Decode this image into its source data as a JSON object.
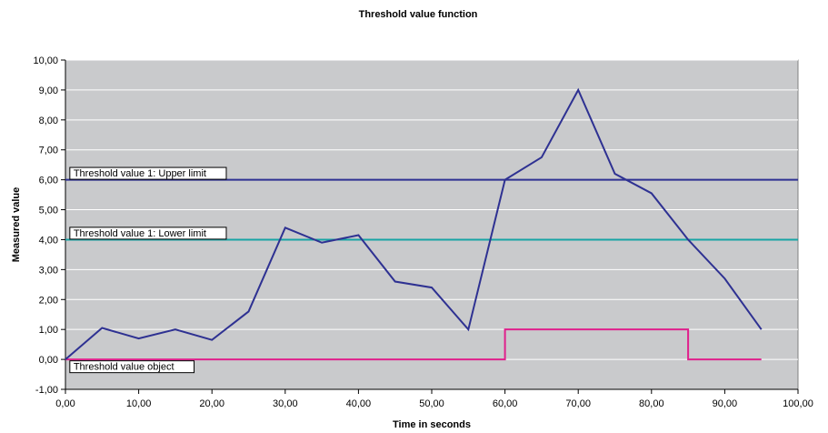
{
  "chart_data": {
    "type": "line",
    "title": "Threshold value function",
    "xlabel": "Time in seconds",
    "ylabel": "Measured value",
    "xlim": [
      0,
      100
    ],
    "ylim": [
      -1,
      10
    ],
    "x_ticks": [
      "0,00",
      "10,00",
      "20,00",
      "30,00",
      "40,00",
      "50,00",
      "60,00",
      "70,00",
      "80,00",
      "90,00",
      "100,00"
    ],
    "y_ticks": [
      "-1,00",
      "0,00",
      "1,00",
      "2,00",
      "3,00",
      "4,00",
      "5,00",
      "6,00",
      "7,00",
      "8,00",
      "9,00",
      "10,00"
    ],
    "grid": true,
    "colors": {
      "plot_bg": "#c9cacc",
      "measured": "#2e3192",
      "upper": "#2e3192",
      "lower": "#16a4a4",
      "object": "#e0208c"
    },
    "series": [
      {
        "key": "measured",
        "x": [
          0,
          5,
          10,
          15,
          20,
          25,
          30,
          35,
          40,
          45,
          50,
          55,
          60,
          65,
          70,
          75,
          80,
          85,
          90,
          95
        ],
        "y": [
          0.0,
          1.05,
          0.7,
          1.0,
          0.65,
          1.6,
          4.4,
          3.9,
          4.15,
          2.6,
          2.4,
          1.0,
          6.0,
          6.75,
          9.0,
          6.2,
          5.55,
          4.0,
          2.7,
          1.0
        ]
      },
      {
        "key": "upper",
        "name": "Threshold value 1: Upper limit",
        "x": [
          0,
          100
        ],
        "y": [
          6,
          6
        ]
      },
      {
        "key": "lower",
        "name": "Threshold value 1: Lower limit",
        "x": [
          0,
          100
        ],
        "y": [
          4,
          4
        ]
      },
      {
        "key": "object",
        "name": "Threshold value object",
        "step": true,
        "x": [
          0,
          60,
          60,
          85,
          85,
          95
        ],
        "y": [
          0,
          0,
          1,
          1,
          0,
          0
        ]
      }
    ]
  }
}
